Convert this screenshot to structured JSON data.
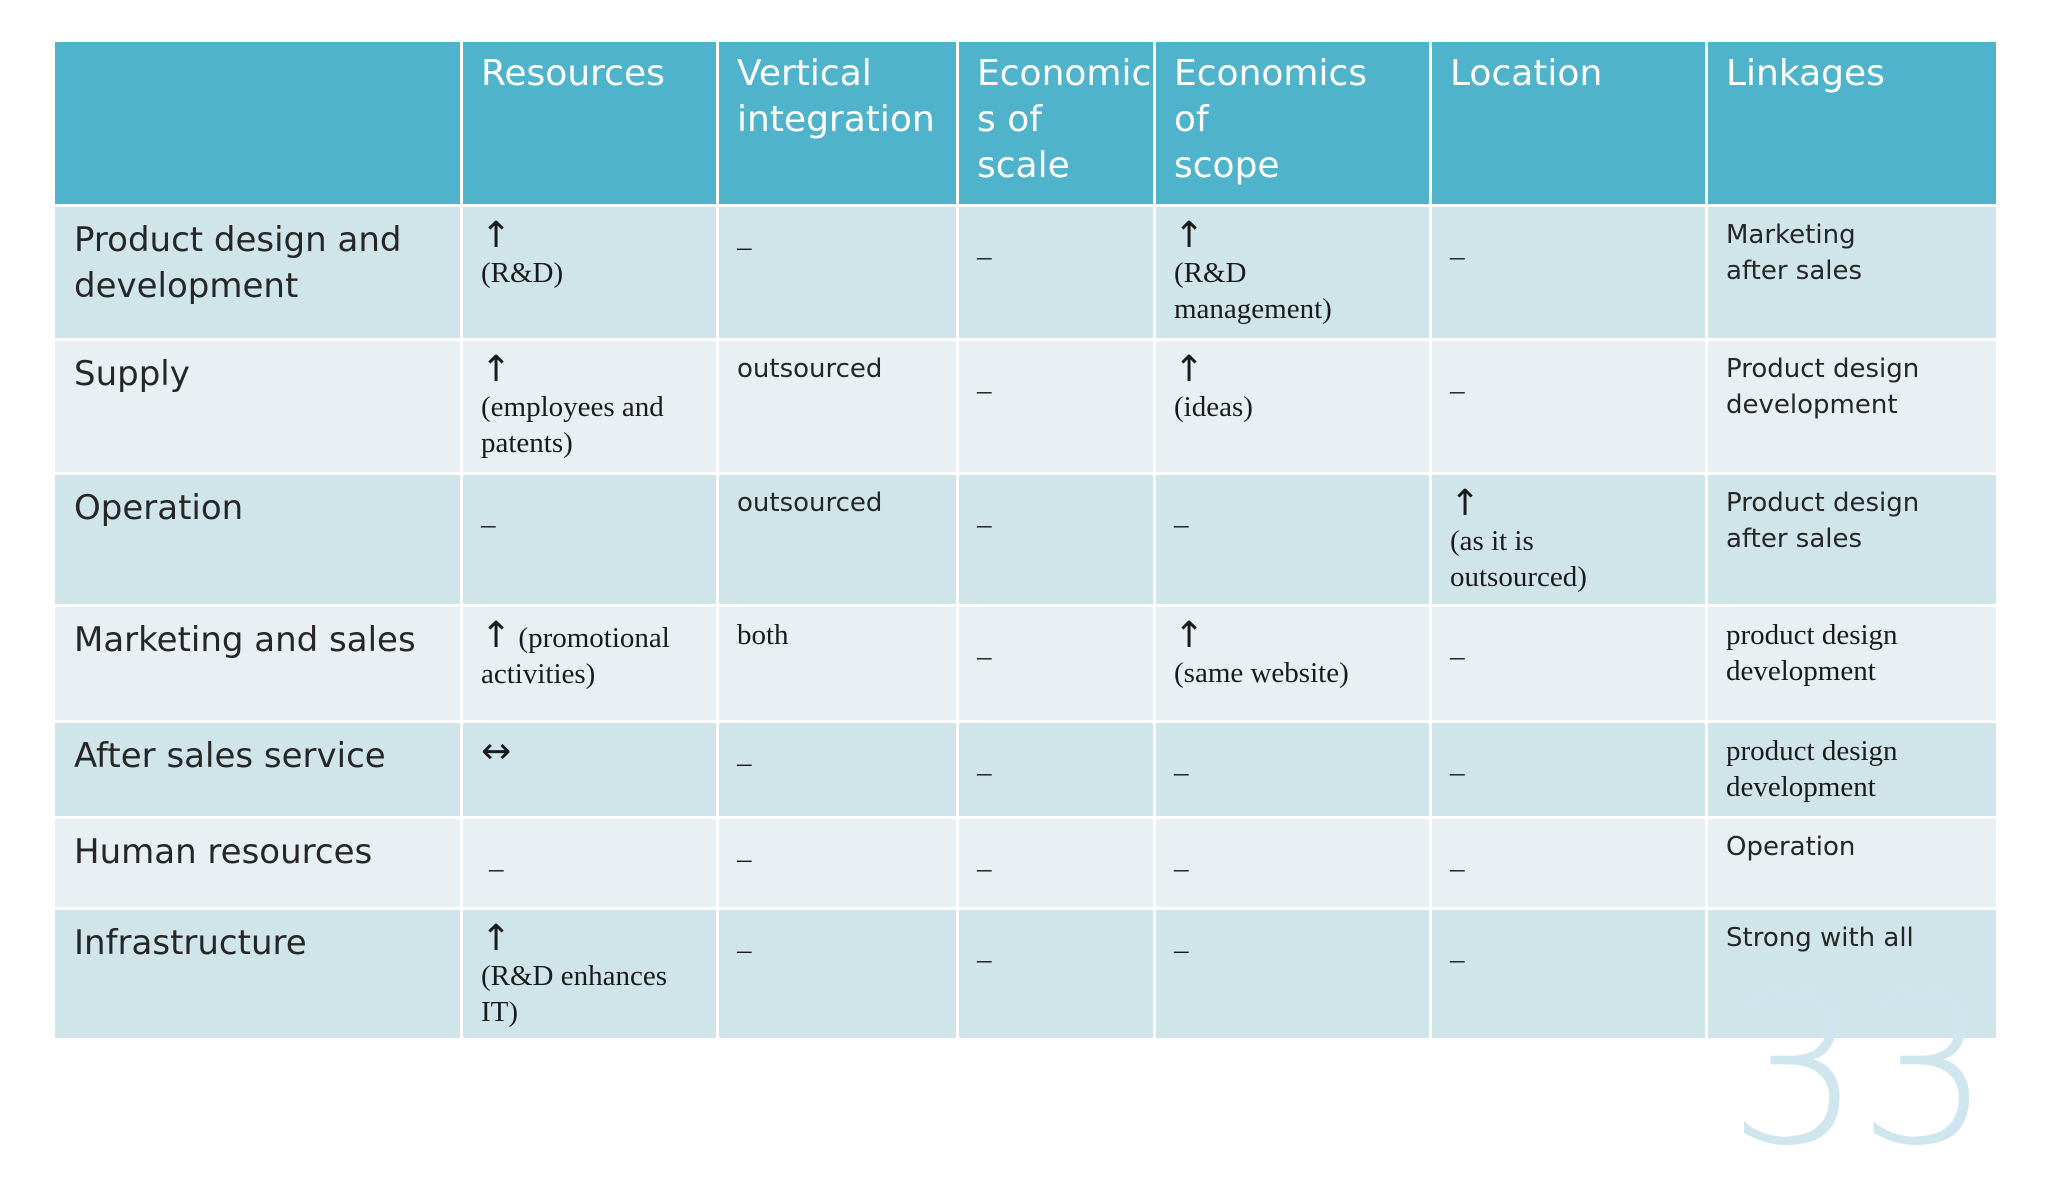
{
  "header": {
    "corner": "",
    "columns": [
      "Resources",
      "Vertical\nintegration",
      "Economic\ns of scale",
      "Economics of\nscope",
      "Location",
      "Linkages"
    ]
  },
  "rows": [
    {
      "label": "Product design and development",
      "resources": {
        "arrow": "↑",
        "text": "(R&D)"
      },
      "vertical": {
        "text": "–"
      },
      "scale": {
        "text": "_"
      },
      "scope": {
        "arrow": "↑",
        "text": "(R&D\nmanagement)"
      },
      "location": {
        "text": "_"
      },
      "linkages": {
        "text": "Marketing\nafter sales"
      }
    },
    {
      "label": "Supply",
      "resources": {
        "arrow": "↑",
        "text": "(employees and\npatents)"
      },
      "vertical": {
        "text": "outsourced"
      },
      "scale": {
        "text": "_"
      },
      "scope": {
        "arrow": "↑",
        "text": "(ideas)"
      },
      "location": {
        "text": "_"
      },
      "linkages": {
        "text": "Product  design\ndevelopment"
      }
    },
    {
      "label": "Operation",
      "resources": {
        "text": "_"
      },
      "vertical": {
        "text": "outsourced"
      },
      "scale": {
        "text": "_"
      },
      "scope": {
        "text": "_"
      },
      "location": {
        "arrow": "↑",
        "text": "(as it is\noutsourced)"
      },
      "linkages": {
        "text": "Product design\nafter sales"
      }
    },
    {
      "label": "Marketing and sales",
      "resources": {
        "arrow": "↑",
        "text": "(promotional\nactivities)"
      },
      "vertical": {
        "text": "both"
      },
      "scale": {
        "text": "_"
      },
      "scope": {
        "arrow": "↑",
        "text": "(same website)"
      },
      "location": {
        "text": "_"
      },
      "linkages": {
        "text": "product design\ndevelopment"
      }
    },
    {
      "label": "After sales service",
      "resources": {
        "text": "↔"
      },
      "vertical": {
        "text": "–"
      },
      "scale": {
        "text": "_"
      },
      "scope": {
        "text": "_"
      },
      "location": {
        "text": "_"
      },
      "linkages": {
        "text": "product design\ndevelopment"
      }
    },
    {
      "label": "Human resources",
      "resources": {
        "text": "_"
      },
      "vertical": {
        "text": "–"
      },
      "scale": {
        "text": "_"
      },
      "scope": {
        "text": "_"
      },
      "location": {
        "text": "_"
      },
      "linkages": {
        "text": "Operation"
      }
    },
    {
      "label": "Infrastructure",
      "resources": {
        "arrow": "↑",
        "text": "(R&D enhances\nIT)"
      },
      "vertical": {
        "text": "–"
      },
      "scale": {
        "text": "_"
      },
      "scope": {
        "text": "–"
      },
      "location": {
        "text": "_"
      },
      "linkages": {
        "text": "Strong with all"
      }
    }
  ],
  "page_number": "33",
  "colors": {
    "header_bg": "#4fb3cc",
    "row_odd_bg": "#d0e5ea",
    "row_even_bg": "#e8f0f3",
    "page_number": "#cfe6ee"
  }
}
